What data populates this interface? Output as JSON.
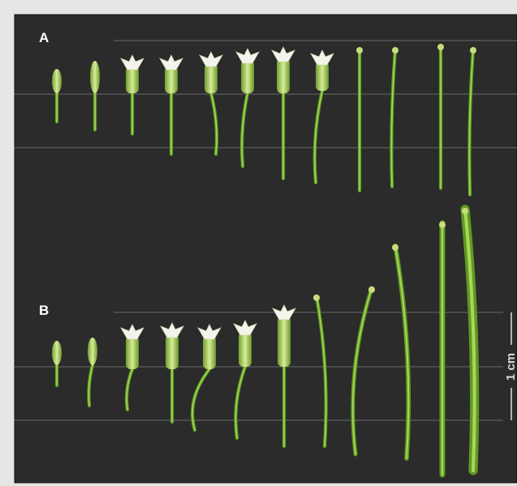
{
  "panels": [
    {
      "label": "A"
    },
    {
      "label": "B"
    }
  ],
  "scale_bar": {
    "label": "1 cm"
  }
}
